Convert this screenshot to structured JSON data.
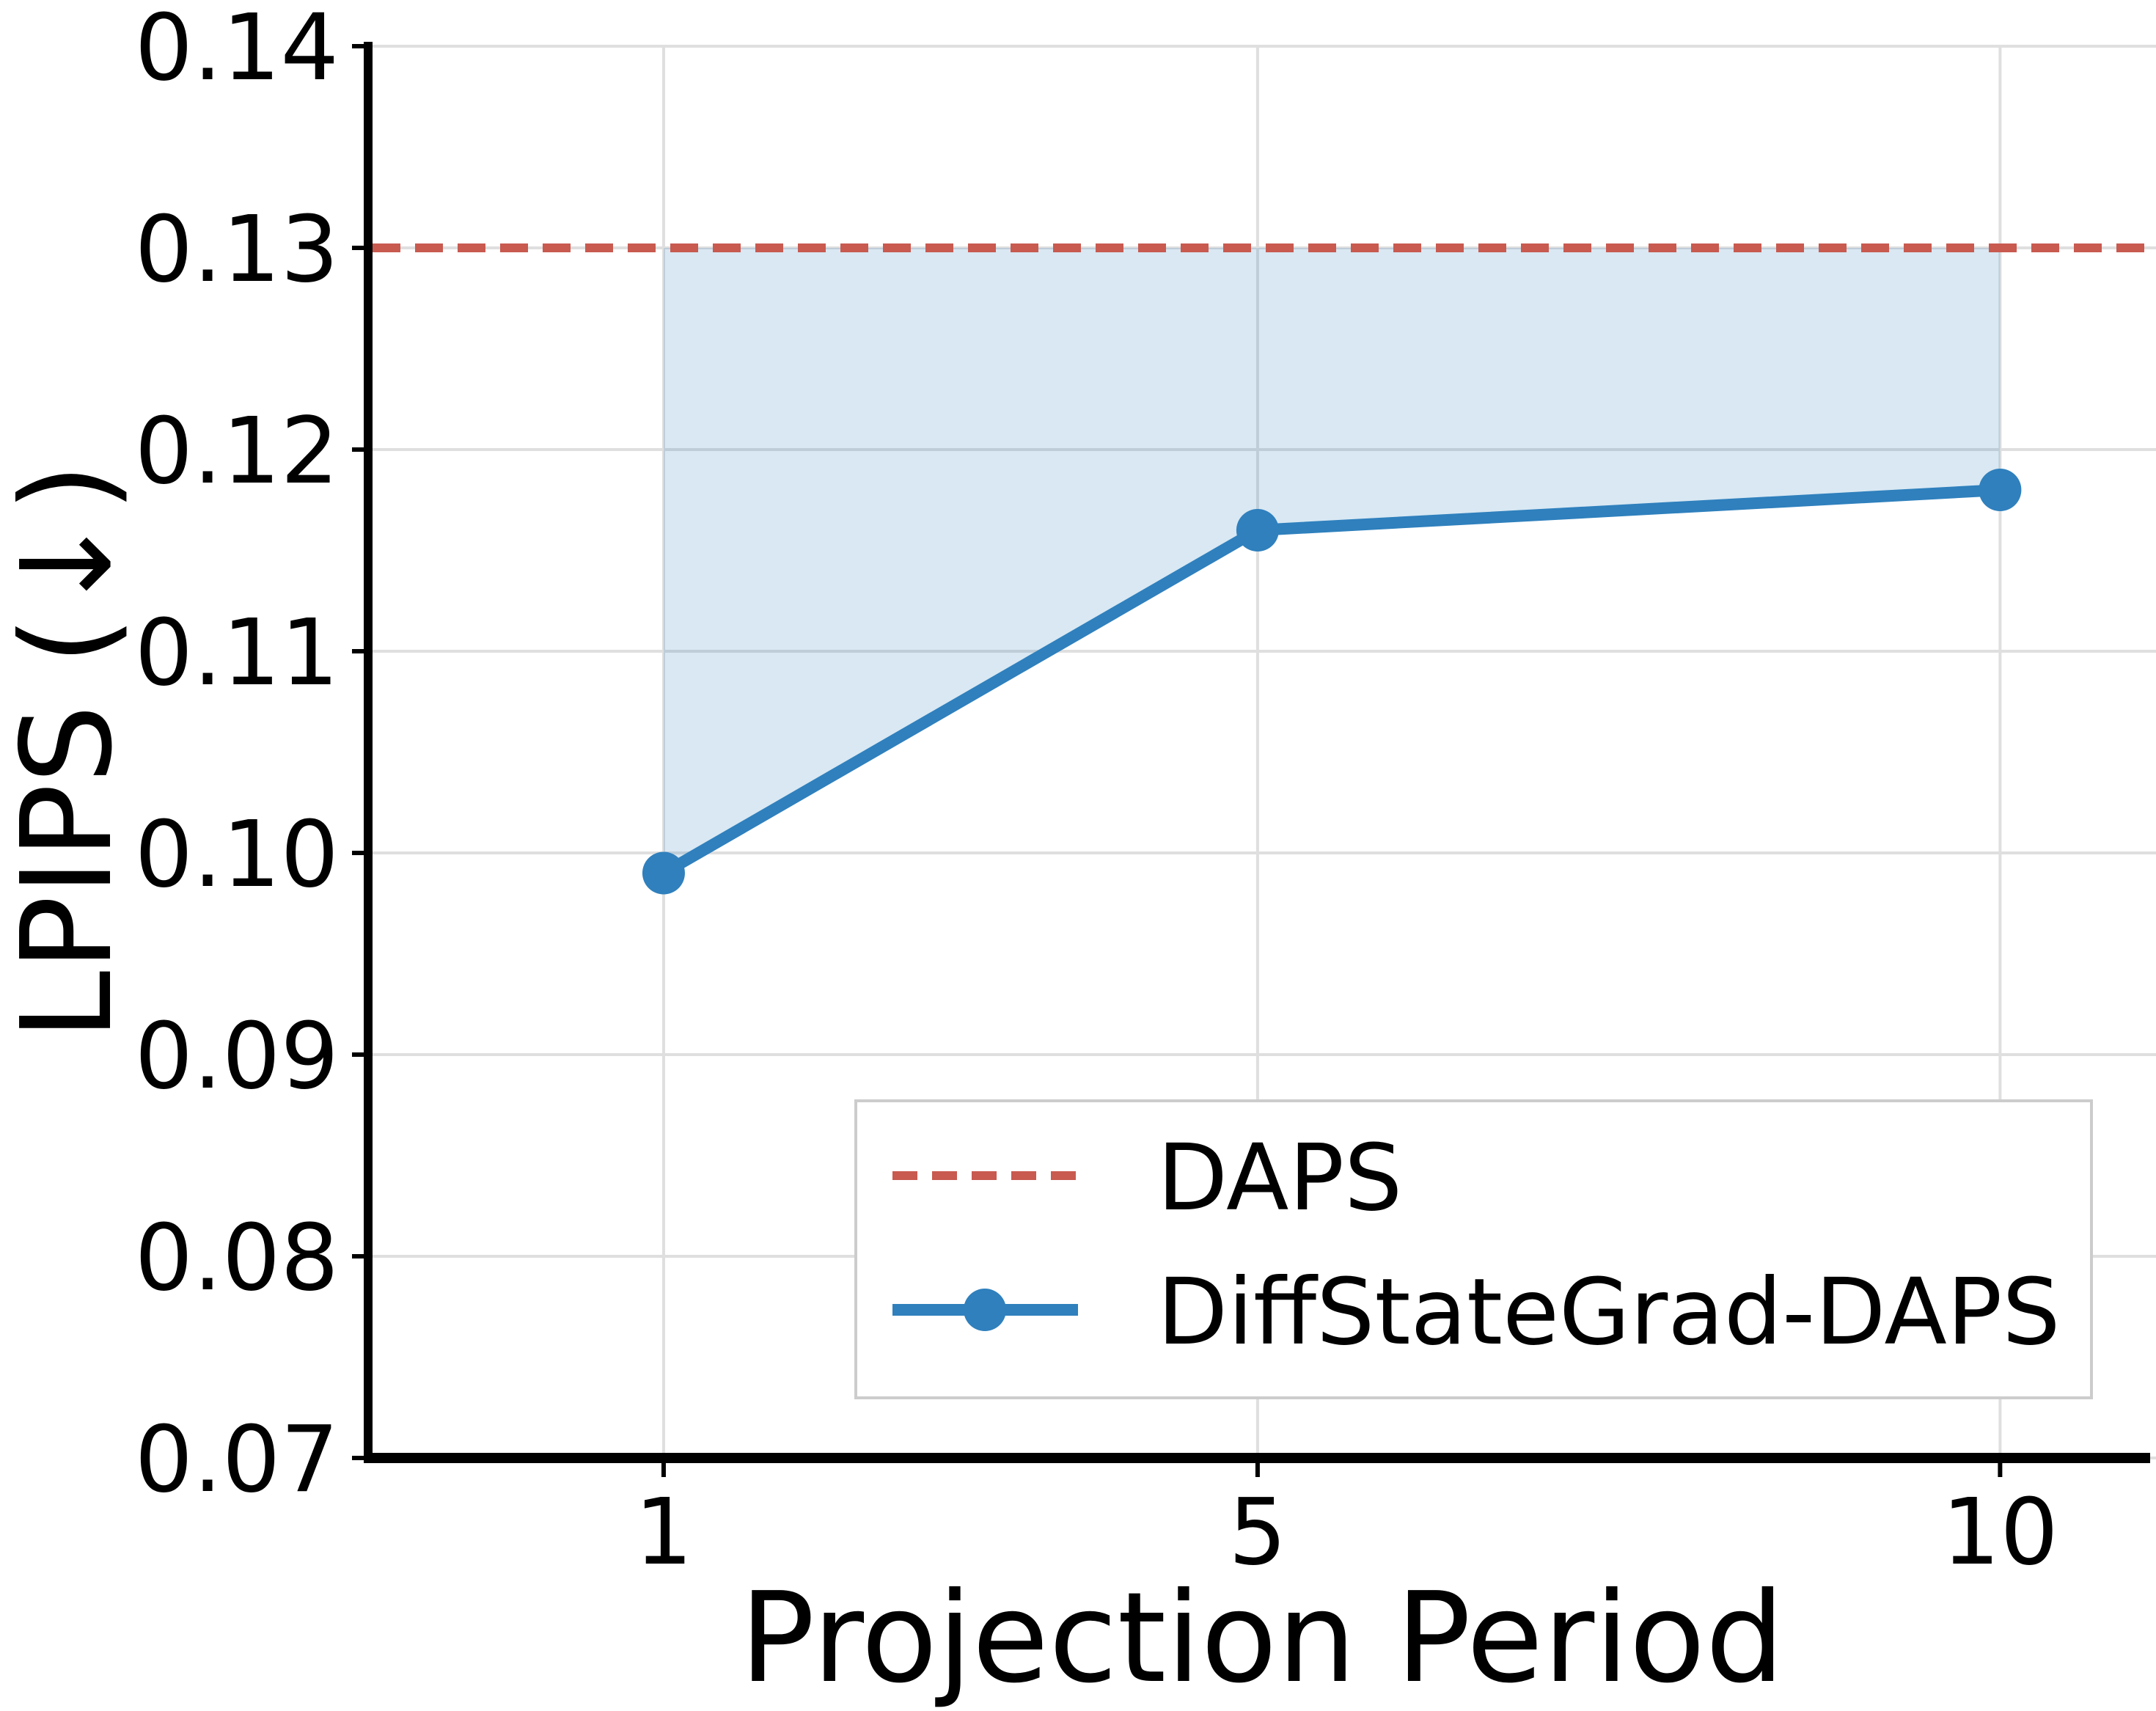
{
  "chart_data": {
    "type": "line",
    "title": "",
    "xlabel": "Projection Period",
    "ylabel": "LPIPS (↓)",
    "x": [
      1,
      5,
      10
    ],
    "xticks": [
      1,
      5,
      10
    ],
    "yticks": [
      0.07,
      0.08,
      0.09,
      0.1,
      0.11,
      0.12,
      0.13,
      0.14
    ],
    "xlim": [
      -0.99,
      11.05
    ],
    "ylim": [
      0.07,
      0.14
    ],
    "grid": true,
    "series": [
      {
        "name": "DAPS",
        "type": "hline",
        "value": 0.13,
        "style": "dashed",
        "color": "#c85a50"
      },
      {
        "name": "DiffStateGrad-DAPS",
        "type": "line+marker",
        "values": [
          0.099,
          0.116,
          0.118
        ],
        "color": "#2f80bd"
      }
    ],
    "fill_between": {
      "from_series": "DiffStateGrad-DAPS",
      "to_value": 0.13,
      "color": "#2f80bd",
      "opacity": 0.18
    },
    "legend": {
      "position": "lower right",
      "entries": [
        "DAPS",
        "DiffStateGrad-DAPS"
      ],
      "border_color": "#cccccc",
      "background": "#ffffff"
    },
    "colors": {
      "grid": "#dfdfdf",
      "spine": "#000000",
      "tick": "#000000"
    }
  }
}
